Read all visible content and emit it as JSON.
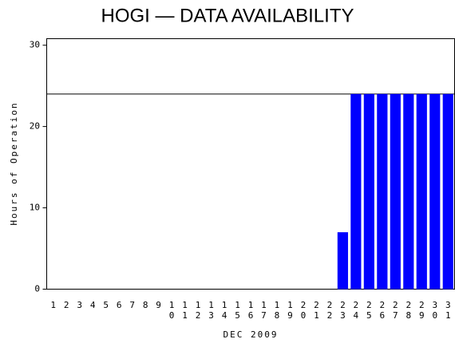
{
  "chart_data": {
    "type": "bar",
    "title": "HOGI — DATA AVAILABILITY",
    "y_label": "Hours of Operation",
    "x_label": "DEC 2009",
    "categories": [
      "1",
      "2",
      "3",
      "4",
      "5",
      "6",
      "7",
      "8",
      "9",
      "10",
      "11",
      "12",
      "13",
      "14",
      "15",
      "16",
      "17",
      "18",
      "19",
      "20",
      "21",
      "22",
      "23",
      "24",
      "25",
      "26",
      "27",
      "28",
      "29",
      "30",
      "31"
    ],
    "values": [
      0,
      0,
      0,
      0,
      0,
      0,
      0,
      0,
      0,
      0,
      0,
      0,
      0,
      0,
      0,
      0,
      0,
      0,
      0,
      0,
      0,
      0,
      7,
      24,
      24,
      24,
      24,
      24,
      24,
      24,
      24
    ],
    "color": "#0000ff",
    "ylim": [
      0,
      30.8
    ],
    "yticks": [
      0,
      10,
      20,
      30
    ],
    "reference_line": 24
  }
}
